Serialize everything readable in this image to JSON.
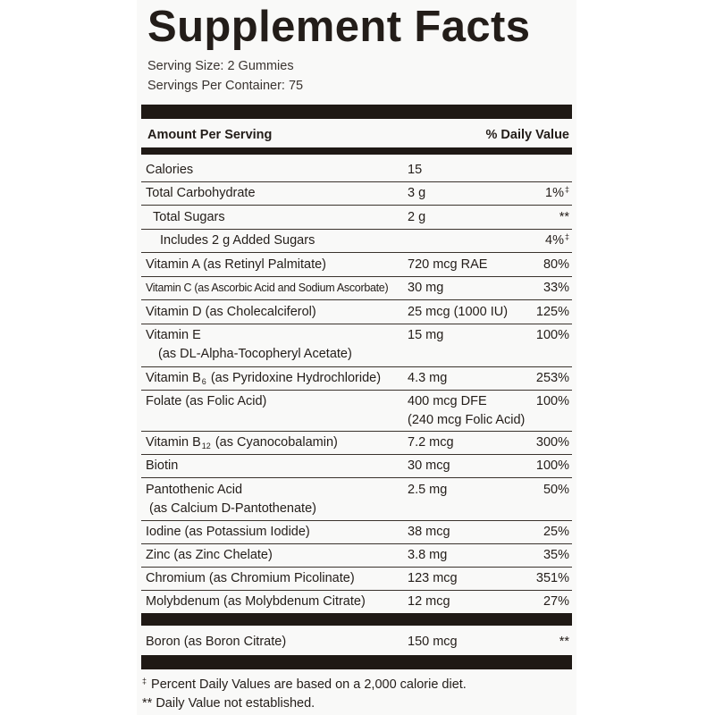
{
  "panel": {
    "title": "Supplement Facts",
    "serving_size": "Serving Size: 2 Gummies",
    "servings_per_container": "Servings Per Container: 75",
    "amount_header": "Amount Per Serving",
    "dv_header": "% Daily Value"
  },
  "rows": [
    {
      "name": "Calories",
      "amount": "15",
      "dv": ""
    },
    {
      "name": "Total Carbohydrate",
      "amount": "3 g",
      "dv": "1%",
      "dv_mark": "‡"
    },
    {
      "name": "Total Sugars",
      "amount": "2 g",
      "dv": "**"
    },
    {
      "name": "Includes 2 g Added Sugars",
      "amount": "",
      "dv": "4%",
      "dv_mark": "‡"
    },
    {
      "name": "Vitamin A (as Retinyl Palmitate)",
      "amount": "720 mcg RAE",
      "dv": "80%"
    },
    {
      "name": "Vitamin C (as Ascorbic Acid and Sodium Ascorbate)",
      "amount": "30 mg",
      "dv": "33%"
    },
    {
      "name": "Vitamin D (as Cholecalciferol)",
      "amount": "25 mcg (1000 IU)",
      "dv": "125%"
    },
    {
      "name": "Vitamin E",
      "name_line2": "(as DL-Alpha-Tocopheryl Acetate)",
      "amount": "15 mg",
      "dv": "100%"
    },
    {
      "name_pre": "Vitamin B",
      "name_sub": "6",
      "name_post": " (as Pyridoxine Hydrochloride)",
      "amount": "4.3 mg",
      "dv": "253%"
    },
    {
      "name": "Folate (as Folic Acid)",
      "amount": "400 mcg DFE",
      "amount_line2": "(240 mcg Folic Acid)",
      "dv": "100%"
    },
    {
      "name_pre": "Vitamin B",
      "name_sub": "12",
      "name_post": " (as Cyanocobalamin)",
      "amount": "7.2 mcg",
      "dv": "300%"
    },
    {
      "name": "Biotin",
      "amount": "30 mcg",
      "dv": "100%"
    },
    {
      "name": "Pantothenic Acid",
      "name_line2": "(as Calcium D-Pantothenate)",
      "amount": "2.5 mg",
      "dv": "50%"
    },
    {
      "name": "Iodine (as Potassium Iodide)",
      "amount": "38 mcg",
      "dv": "25%"
    },
    {
      "name": "Zinc (as Zinc Chelate)",
      "amount": "3.8 mg",
      "dv": "35%"
    },
    {
      "name": "Chromium (as Chromium Picolinate)",
      "amount": "123 mcg",
      "dv": "351%"
    },
    {
      "name": "Molybdenum (as Molybdenum Citrate)",
      "amount": "12 mcg",
      "dv": "27%"
    }
  ],
  "boron": {
    "name": "Boron (as Boron Citrate)",
    "amount": "150 mcg",
    "dv": "**"
  },
  "footnotes": {
    "dagger_mark": "‡",
    "dagger": " Percent Daily Values are based on a 2,000 calorie diet.",
    "dv_not_established": "** Daily Value not established."
  }
}
